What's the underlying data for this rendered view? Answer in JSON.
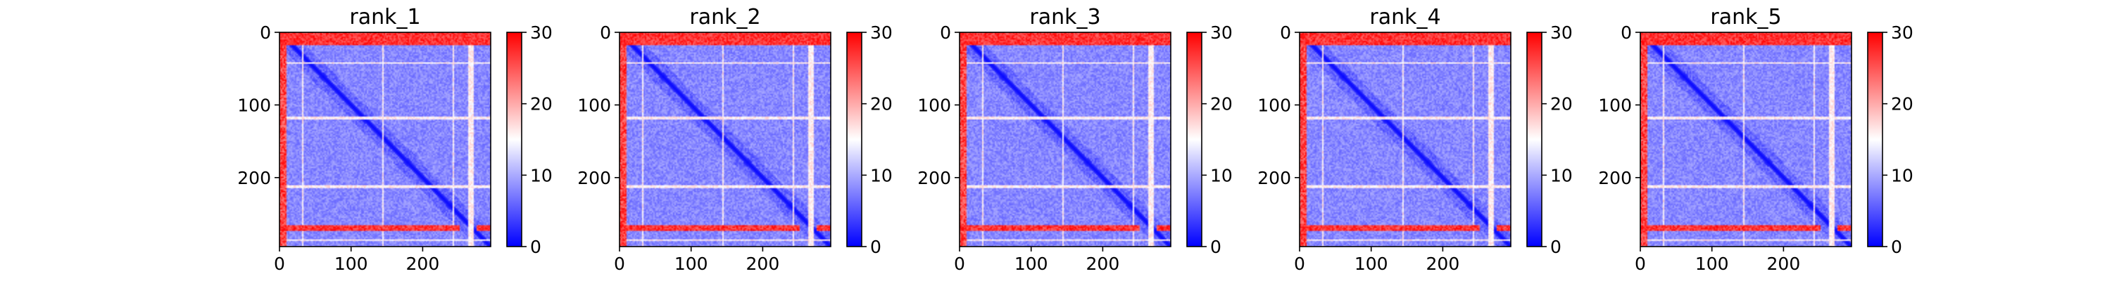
{
  "colormap": {
    "name": "bwr",
    "low_color": "#0000ff",
    "mid_color": "#ffffff",
    "high_color": "#ff0000",
    "vmin": 0,
    "vmax": 30
  },
  "chart_data": [
    {
      "type": "heatmap",
      "title": "rank_1",
      "matrix_size": 295,
      "x_ticks": [
        "0",
        "100",
        "200"
      ],
      "x_tick_values": [
        0,
        100,
        200
      ],
      "y_ticks": [
        "0",
        "100",
        "200"
      ],
      "y_tick_values": [
        0,
        100,
        200
      ],
      "colorbar_ticks": [
        "0",
        "10",
        "20",
        "30"
      ],
      "colorbar_tick_values": [
        0,
        10,
        20,
        30
      ],
      "high_error_rows": [
        0,
        1,
        2,
        3,
        4,
        5,
        6,
        7,
        8,
        9,
        10,
        11,
        12,
        13,
        14,
        15,
        264,
        265,
        266,
        267,
        268,
        269,
        270,
        271,
        272
      ],
      "high_error_cols": [
        0,
        1,
        2,
        3,
        4,
        5,
        6,
        7,
        8
      ],
      "mid_error_rows": [
        40,
        41,
        42,
        116,
        117,
        118,
        209,
        210,
        211,
        212,
        213,
        284,
        285
      ],
      "mid_error_cols": [
        30,
        31,
        143,
        144,
        240,
        241,
        263,
        264,
        265,
        266,
        267,
        268,
        269
      ]
    },
    {
      "type": "heatmap",
      "title": "rank_2",
      "matrix_size": 295,
      "x_ticks": [
        "0",
        "100",
        "200"
      ],
      "x_tick_values": [
        0,
        100,
        200
      ],
      "y_ticks": [
        "0",
        "100",
        "200"
      ],
      "y_tick_values": [
        0,
        100,
        200
      ],
      "colorbar_ticks": [
        "0",
        "10",
        "20",
        "30"
      ],
      "colorbar_tick_values": [
        0,
        10,
        20,
        30
      ],
      "high_error_rows": [
        0,
        1,
        2,
        3,
        4,
        5,
        6,
        7,
        8,
        9,
        10,
        11,
        12,
        13,
        14,
        15,
        264,
        265,
        266,
        267,
        268,
        269,
        270,
        271,
        272
      ],
      "high_error_cols": [
        0,
        1,
        2,
        3,
        4,
        5,
        6,
        7,
        8
      ],
      "mid_error_rows": [
        40,
        41,
        42,
        116,
        117,
        118,
        209,
        210,
        211,
        212,
        213,
        284,
        285
      ],
      "mid_error_cols": [
        30,
        31,
        143,
        144,
        240,
        241,
        263,
        264,
        265,
        266,
        267,
        268,
        269
      ]
    },
    {
      "type": "heatmap",
      "title": "rank_3",
      "matrix_size": 295,
      "x_ticks": [
        "0",
        "100",
        "200"
      ],
      "x_tick_values": [
        0,
        100,
        200
      ],
      "y_ticks": [
        "0",
        "100",
        "200"
      ],
      "y_tick_values": [
        0,
        100,
        200
      ],
      "colorbar_ticks": [
        "0",
        "10",
        "20",
        "30"
      ],
      "colorbar_tick_values": [
        0,
        10,
        20,
        30
      ],
      "high_error_rows": [
        0,
        1,
        2,
        3,
        4,
        5,
        6,
        7,
        8,
        9,
        10,
        11,
        12,
        13,
        14,
        15,
        264,
        265,
        266,
        267,
        268,
        269,
        270,
        271,
        272
      ],
      "high_error_cols": [
        0,
        1,
        2,
        3,
        4,
        5,
        6,
        7,
        8
      ],
      "mid_error_rows": [
        40,
        41,
        42,
        116,
        117,
        118,
        209,
        210,
        211,
        212,
        213,
        284,
        285
      ],
      "mid_error_cols": [
        30,
        31,
        143,
        144,
        240,
        241,
        263,
        264,
        265,
        266,
        267,
        268,
        269
      ]
    },
    {
      "type": "heatmap",
      "title": "rank_4",
      "matrix_size": 295,
      "x_ticks": [
        "0",
        "100",
        "200"
      ],
      "x_tick_values": [
        0,
        100,
        200
      ],
      "y_ticks": [
        "0",
        "100",
        "200"
      ],
      "y_tick_values": [
        0,
        100,
        200
      ],
      "colorbar_ticks": [
        "0",
        "10",
        "20",
        "30"
      ],
      "colorbar_tick_values": [
        0,
        10,
        20,
        30
      ],
      "high_error_rows": [
        0,
        1,
        2,
        3,
        4,
        5,
        6,
        7,
        8,
        9,
        10,
        11,
        12,
        13,
        14,
        15,
        264,
        265,
        266,
        267,
        268,
        269,
        270,
        271,
        272
      ],
      "high_error_cols": [
        0,
        1,
        2,
        3,
        4,
        5,
        6,
        7,
        8
      ],
      "mid_error_rows": [
        40,
        41,
        42,
        116,
        117,
        118,
        209,
        210,
        211,
        212,
        213,
        284,
        285
      ],
      "mid_error_cols": [
        30,
        31,
        143,
        144,
        240,
        241,
        263,
        264,
        265,
        266,
        267,
        268,
        269
      ]
    },
    {
      "type": "heatmap",
      "title": "rank_5",
      "matrix_size": 295,
      "x_ticks": [
        "0",
        "100",
        "200"
      ],
      "x_tick_values": [
        0,
        100,
        200
      ],
      "y_ticks": [
        "0",
        "100",
        "200"
      ],
      "y_tick_values": [
        0,
        100,
        200
      ],
      "colorbar_ticks": [
        "0",
        "10",
        "20",
        "30"
      ],
      "colorbar_tick_values": [
        0,
        10,
        20,
        30
      ],
      "high_error_rows": [
        0,
        1,
        2,
        3,
        4,
        5,
        6,
        7,
        8,
        9,
        10,
        11,
        12,
        13,
        14,
        15,
        264,
        265,
        266,
        267,
        268,
        269,
        270,
        271,
        272
      ],
      "high_error_cols": [
        0,
        1,
        2,
        3,
        4,
        5,
        6,
        7,
        8
      ],
      "mid_error_rows": [
        40,
        41,
        42,
        116,
        117,
        118,
        209,
        210,
        211,
        212,
        213,
        284,
        285
      ],
      "mid_error_cols": [
        30,
        31,
        143,
        144,
        240,
        241,
        263,
        264,
        265,
        266,
        267,
        268,
        269
      ]
    }
  ]
}
